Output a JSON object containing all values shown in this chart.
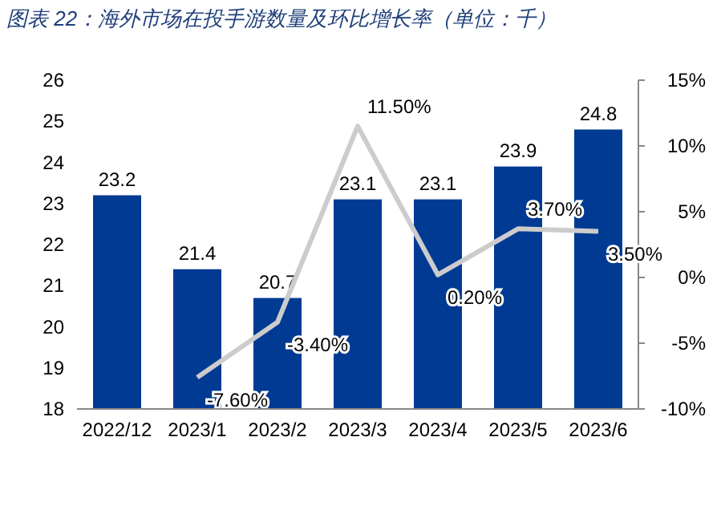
{
  "chart_data": {
    "type": "bar",
    "title": "图表 22：海外市场在投手游数量及环比增长率（单位：千）",
    "categories": [
      "2022/12",
      "2023/1",
      "2023/2",
      "2023/3",
      "2023/4",
      "2023/5",
      "2023/6"
    ],
    "series": [
      {
        "color": "#003a93",
        "values": [
          23.2,
          21.4,
          20.7,
          23.1,
          23.1,
          23.9,
          24.8
        ]
      },
      {
        "type": "line",
        "axis": "y2",
        "color": "#cccccc",
        "values": [
          null,
          -7.6,
          -3.4,
          11.5,
          0.2,
          3.7,
          3.5
        ],
        "value_labels": [
          null,
          "-7.60%",
          "-3.40%",
          "11.50%",
          "0.20%",
          "3.70%",
          "3.50%"
        ]
      }
    ],
    "data_labels": true,
    "ylim": [
      18,
      26
    ],
    "yticks": [
      18,
      19,
      20,
      21,
      22,
      23,
      24,
      25,
      26
    ],
    "y2lim": [
      -10,
      15
    ],
    "y2ticks": [
      {
        "value": -10,
        "label": "-10%"
      },
      {
        "value": -5,
        "label": "-5%"
      },
      {
        "value": 0,
        "label": "0%"
      },
      {
        "value": 5,
        "label": "5%"
      },
      {
        "value": 10,
        "label": "10%"
      },
      {
        "value": 15,
        "label": "15%"
      }
    ]
  }
}
